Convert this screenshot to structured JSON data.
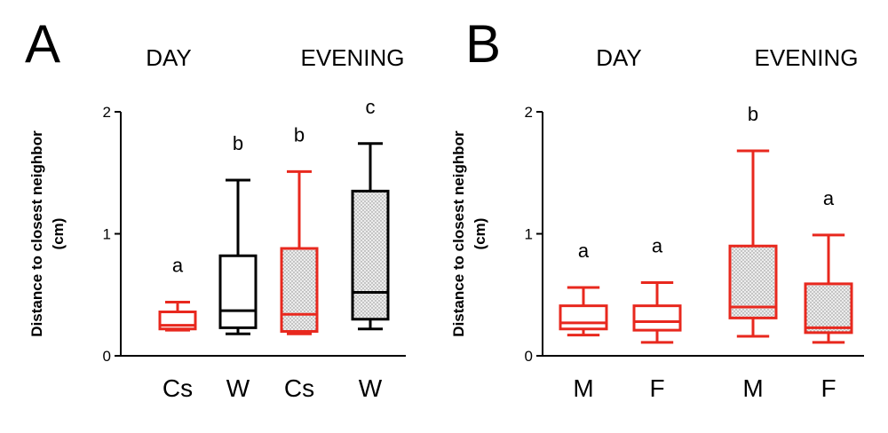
{
  "chart_data": [
    {
      "panel": "A",
      "type": "box",
      "group_labels": [
        "DAY",
        "EVENING"
      ],
      "ylabel": [
        "Distance to closest neighbor",
        "(cm)"
      ],
      "ylim": [
        0,
        2
      ],
      "yticks": [
        "0",
        "1",
        "2"
      ],
      "categories": [
        "Cs",
        "W",
        "Cs",
        "W"
      ],
      "boxes": [
        {
          "label": "Cs",
          "group": "DAY",
          "color": "#e8281e",
          "shaded": false,
          "min": 0.21,
          "q1": 0.22,
          "median": 0.25,
          "q3": 0.36,
          "max": 0.44,
          "sig": "a"
        },
        {
          "label": "W",
          "group": "DAY",
          "color": "#000000",
          "shaded": false,
          "min": 0.18,
          "q1": 0.23,
          "median": 0.37,
          "q3": 0.82,
          "max": 1.44,
          "sig": "b"
        },
        {
          "label": "Cs",
          "group": "EVENING",
          "color": "#e8281e",
          "shaded": true,
          "min": 0.18,
          "q1": 0.2,
          "median": 0.34,
          "q3": 0.88,
          "max": 1.51,
          "sig": "b"
        },
        {
          "label": "W",
          "group": "EVENING",
          "color": "#000000",
          "shaded": true,
          "min": 0.22,
          "q1": 0.3,
          "median": 0.52,
          "q3": 1.35,
          "max": 1.74,
          "sig": "c"
        }
      ]
    },
    {
      "panel": "B",
      "type": "box",
      "group_labels": [
        "DAY",
        "EVENING"
      ],
      "ylabel": [
        "Distance to closest neighbor",
        "(cm)"
      ],
      "ylim": [
        0,
        2
      ],
      "yticks": [
        "0",
        "1",
        "2"
      ],
      "categories": [
        "M",
        "F",
        "M",
        "F"
      ],
      "boxes": [
        {
          "label": "M",
          "group": "DAY",
          "color": "#e8281e",
          "shaded": false,
          "min": 0.17,
          "q1": 0.22,
          "median": 0.27,
          "q3": 0.41,
          "max": 0.56,
          "sig": "a"
        },
        {
          "label": "F",
          "group": "DAY",
          "color": "#e8281e",
          "shaded": false,
          "min": 0.11,
          "q1": 0.21,
          "median": 0.28,
          "q3": 0.41,
          "max": 0.6,
          "sig": "a"
        },
        {
          "label": "M",
          "group": "EVENING",
          "color": "#e8281e",
          "shaded": true,
          "min": 0.16,
          "q1": 0.31,
          "median": 0.4,
          "q3": 0.9,
          "max": 1.68,
          "sig": "b"
        },
        {
          "label": "F",
          "group": "EVENING",
          "color": "#e8281e",
          "shaded": true,
          "min": 0.11,
          "q1": 0.19,
          "median": 0.23,
          "q3": 0.59,
          "max": 0.99,
          "sig": "a"
        }
      ]
    }
  ]
}
